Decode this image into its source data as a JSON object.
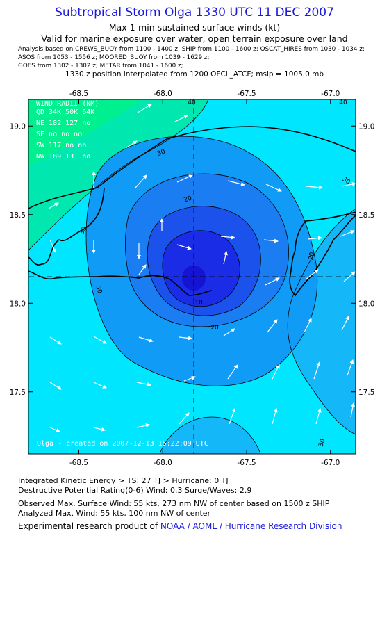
{
  "header": {
    "title": "Subtropical Storm Olga 1330 UTC 11 DEC 2007",
    "subtitle_1": "Max 1-min sustained surface winds (kt)",
    "subtitle_2": "Valid for marine exposure over water, open terrain exposure over land",
    "sources_line_1": "Analysis based on  CREWS_BUOY from 1100 - 1400 z;  SHIP from 1100 - 1600 z;  QSCAT_HIRES from 1030 - 1034 z;",
    "sources_line_2": "ASOS from 1053 - 1556 z;  MOORED_BUOY from 1039 - 1629 z;",
    "sources_line_3": "GOES from 1302 - 1302 z;  METAR from 1041 - 1600 z;",
    "position_note": "1330 z position interpolated from 1200 OFCL_ATCF; mslp = 1005.0 mb"
  },
  "map": {
    "lon_ticks": [
      "-68.5",
      "-68.0",
      "-67.5",
      "-67.0"
    ],
    "lat_ticks": [
      "19.0",
      "18.5",
      "18.0",
      "17.5"
    ],
    "lon_range": [
      -68.8,
      -66.85
    ],
    "lat_range": [
      17.15,
      19.15
    ],
    "center": {
      "lon": -67.8,
      "lat": 18.15
    },
    "contour_labels": [
      "40",
      "40",
      "30",
      "30",
      "30",
      "30",
      "20",
      "20",
      "20",
      "10",
      "30"
    ],
    "colors": {
      "cyan": "#00e6ff",
      "sky": "#14b8f8",
      "mid_blue": "#1a7ef2",
      "blue": "#1b52ec",
      "deep_blue": "#1a2ce6",
      "core": "#1414d2",
      "teal": "#00e8b0",
      "green": "#00f090",
      "ring_outer": "#109cf6"
    },
    "wind_radii": {
      "title": "WIND RADII (NM)",
      "header": "QD  34K  50K  64K",
      "rows": [
        "NE  182  127   no",
        "SE   no   no   no",
        "SW  117   no   no",
        "NW  189  131   no"
      ]
    },
    "watermark": "Olga - created on 2007-12-13 15:22:09 UTC"
  },
  "footer": {
    "ike": "Integrated Kinetic Energy > TS: 27 TJ   > Hurricane: 0 TJ",
    "dpr": "Destructive Potential Rating(0-6)   Wind: 0.3 Surge/Waves: 2.9",
    "observed": "Observed Max. Surface Wind: 55 kts, 273 nm NW of center based on 1500 z SHIP",
    "analyzed": "Analyzed Max. Wind: 55 kts, 100 nm NW of center",
    "credit_prefix": "Experimental research product of ",
    "credit_link": "NOAA / AOML / Hurricane Research Division"
  }
}
